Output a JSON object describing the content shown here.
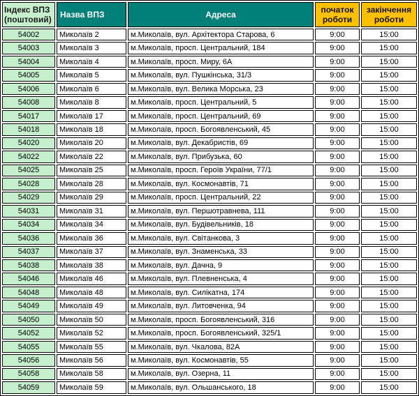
{
  "colors": {
    "teal_header": "#008079",
    "gold_header": "#FFC000",
    "mint_cell": "#C6EFCE",
    "border": "#000000"
  },
  "header": {
    "index": "Індекс ВПЗ (поштовий)",
    "name": "Назва ВПЗ",
    "address": "Адреса",
    "open": "початок роботи",
    "close": "закінчення роботи"
  },
  "rows": [
    {
      "index": "54002",
      "name": "Миколаїв 2",
      "address": "м.Миколаїв, вул. Архітектора Старова, 6",
      "open": "9:00",
      "close": "15:00"
    },
    {
      "index": "54003",
      "name": "Миколаїв 3",
      "address": "м.Миколаїв, просп. Центральний, 184",
      "open": "9:00",
      "close": "15:00"
    },
    {
      "index": "54004",
      "name": "Миколаїв 4",
      "address": "м.Миколаїв, просп. Миру, 6А",
      "open": "9:00",
      "close": "15:00"
    },
    {
      "index": "54005",
      "name": "Миколаїв 5",
      "address": "м.Миколаїв, вул. Пушкінська, 31/3",
      "open": "9:00",
      "close": "15:00"
    },
    {
      "index": "54006",
      "name": "Миколаїв 6",
      "address": "м.Миколаїв, вул. Велика Морська, 23",
      "open": "9:00",
      "close": "15:00"
    },
    {
      "index": "54008",
      "name": "Миколаїв 8",
      "address": "м.Миколаїв, просп. Центральний, 5",
      "open": "9:00",
      "close": "15:00"
    },
    {
      "index": "54017",
      "name": "Миколаїв 17",
      "address": "м.Миколаїв, просп. Центральний, 69",
      "open": "9:00",
      "close": "15:00"
    },
    {
      "index": "54018",
      "name": "Миколаїв 18",
      "address": "м.Миколаїв, просп. Богоявленський, 45",
      "open": "9:00",
      "close": "15:00"
    },
    {
      "index": "54020",
      "name": "Миколаїв 20",
      "address": "м.Миколаїв, вул. Декабристів, 69",
      "open": "9:00",
      "close": "15:00"
    },
    {
      "index": "54022",
      "name": "Миколаїв 22",
      "address": "м.Миколаїв, вул. Прибузька, 60",
      "open": "9:00",
      "close": "15:00"
    },
    {
      "index": "54025",
      "name": "Миколаїв 25",
      "address": "м.Миколаїв, просп. Героїв України, 77/1",
      "open": "9:00",
      "close": "15:00"
    },
    {
      "index": "54028",
      "name": "Миколаїв 28",
      "address": "м.Миколаїв, вул. Космонавтів, 71",
      "open": "9:00",
      "close": "15:00"
    },
    {
      "index": "54029",
      "name": "Миколаїв 29",
      "address": "м.Миколаїв, просп. Центральний, 22",
      "open": "9:00",
      "close": "15:00"
    },
    {
      "index": "54031",
      "name": "Миколаїв 31",
      "address": "м.Миколаїв, вул. Першотравнева, 111",
      "open": "9:00",
      "close": "15:00"
    },
    {
      "index": "54034",
      "name": "Миколаїв 34",
      "address": "м.Миколаїв, вул. Будівельників, 18",
      "open": "9:00",
      "close": "15:00"
    },
    {
      "index": "54036",
      "name": "Миколаїв 36",
      "address": "м.Миколаїв, вул. Світанкова, 3",
      "open": "9:00",
      "close": "15:00"
    },
    {
      "index": "54037",
      "name": "Миколаїв 37",
      "address": "м.Миколаїв, вул. Знаменська, 33",
      "open": "9:00",
      "close": "15:00"
    },
    {
      "index": "54038",
      "name": "Миколаїв 38",
      "address": "м.Миколаїв, вул. Дачна, 9",
      "open": "9:00",
      "close": "15:00"
    },
    {
      "index": "54046",
      "name": "Миколаїв 46",
      "address": "м.Миколаїв, вул. Плевненська, 4",
      "open": "9:00",
      "close": "15:00"
    },
    {
      "index": "54048",
      "name": "Миколаїв 48",
      "address": "м.Миколаїв, вул. Силікатна, 174",
      "open": "9:00",
      "close": "15:00"
    },
    {
      "index": "54049",
      "name": "Миколаїв 49",
      "address": "м.Миколаїв, вул. Литовченка, 94",
      "open": "9:00",
      "close": "15:00"
    },
    {
      "index": "54050",
      "name": "Миколаїв 50",
      "address": "м.Миколаїв, просп. Богоявленський, 316",
      "open": "9:00",
      "close": "15:00"
    },
    {
      "index": "54052",
      "name": "Миколаїв 52",
      "address": "м.Миколаїв, просп. Богоявленський, 325/1",
      "open": "9:00",
      "close": "15:00"
    },
    {
      "index": "54055",
      "name": "Миколаїв 55",
      "address": "м.Миколаїв, вул. Чкалова, 82А",
      "open": "9:00",
      "close": "15:00"
    },
    {
      "index": "54056",
      "name": "Миколаїв 56",
      "address": "м.Миколаїв, вул. Космонавтів, 55",
      "open": "9:00",
      "close": "15:00"
    },
    {
      "index": "54058",
      "name": "Миколаїв 58",
      "address": "м.Миколаїв, вул. Озерна, 11",
      "open": "9:00",
      "close": "15:00"
    },
    {
      "index": "54059",
      "name": "Миколаїв 59",
      "address": "м.Миколаїв, вул. Ольшанського, 18",
      "open": "9:00",
      "close": "15:00"
    }
  ]
}
